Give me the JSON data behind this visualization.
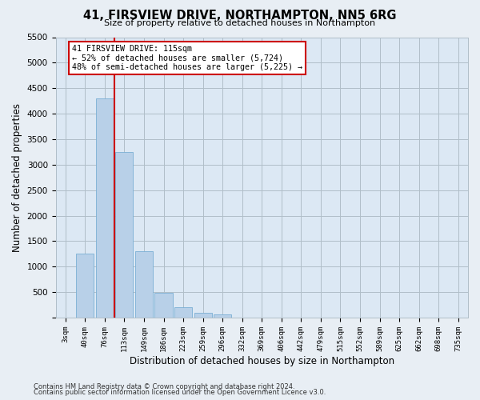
{
  "title": "41, FIRSVIEW DRIVE, NORTHAMPTON, NN5 6RG",
  "subtitle": "Size of property relative to detached houses in Northampton",
  "xlabel": "Distribution of detached houses by size in Northampton",
  "ylabel": "Number of detached properties",
  "footnote1": "Contains HM Land Registry data © Crown copyright and database right 2024.",
  "footnote2": "Contains public sector information licensed under the Open Government Licence v3.0.",
  "bar_labels": [
    "3sqm",
    "40sqm",
    "76sqm",
    "113sqm",
    "149sqm",
    "186sqm",
    "223sqm",
    "259sqm",
    "296sqm",
    "332sqm",
    "369sqm",
    "406sqm",
    "442sqm",
    "479sqm",
    "515sqm",
    "552sqm",
    "589sqm",
    "625sqm",
    "662sqm",
    "698sqm",
    "735sqm"
  ],
  "bar_values": [
    0,
    1250,
    4300,
    3250,
    1300,
    480,
    200,
    90,
    55,
    0,
    0,
    0,
    0,
    0,
    0,
    0,
    0,
    0,
    0,
    0,
    0
  ],
  "bar_color": "#b8d0e8",
  "bar_edge_color": "#7bafd4",
  "ylim": [
    0,
    5500
  ],
  "yticks": [
    0,
    500,
    1000,
    1500,
    2000,
    2500,
    3000,
    3500,
    4000,
    4500,
    5000,
    5500
  ],
  "vline_x": 2.5,
  "vline_color": "#cc0000",
  "annotation_line1": "41 FIRSVIEW DRIVE: 115sqm",
  "annotation_line2": "← 52% of detached houses are smaller (5,724)",
  "annotation_line3": "48% of semi-detached houses are larger (5,225) →",
  "annotation_box_color": "#ffffff",
  "annotation_box_edge_color": "#cc0000",
  "background_color": "#e8eef4",
  "plot_background_color": "#dce8f4",
  "grid_color": "#b0bec8"
}
